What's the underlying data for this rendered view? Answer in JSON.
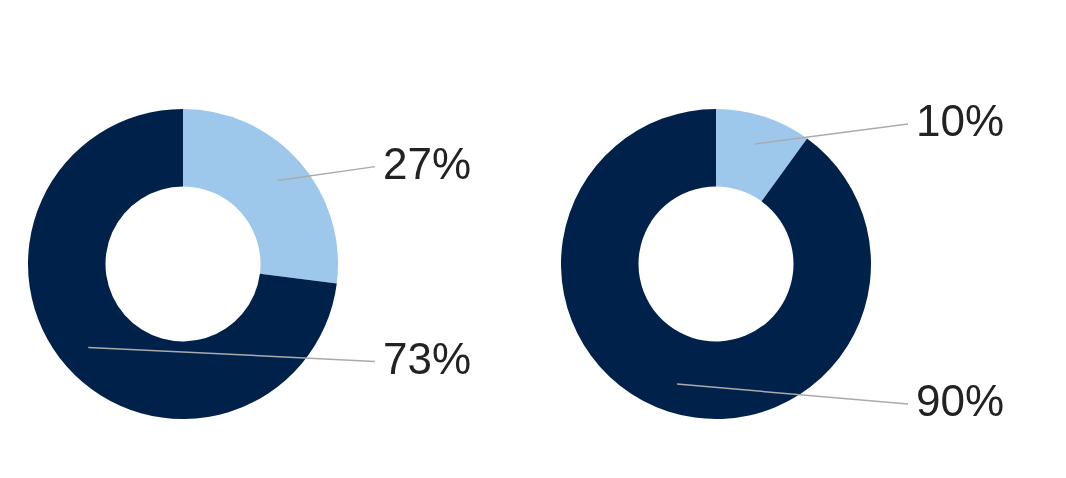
{
  "chart_data": [
    {
      "type": "donut",
      "categories": [
        null,
        null
      ],
      "values": [
        27,
        73
      ],
      "value_labels": [
        "27%",
        "73%"
      ],
      "colors": [
        "#9dc8ec",
        "#00214a"
      ],
      "legend": false
    },
    {
      "type": "donut",
      "categories": [
        null,
        null
      ],
      "values": [
        10,
        90
      ],
      "value_labels": [
        "10%",
        "90%"
      ],
      "colors": [
        "#9dc8ec",
        "#00214a"
      ],
      "legend": false
    }
  ]
}
